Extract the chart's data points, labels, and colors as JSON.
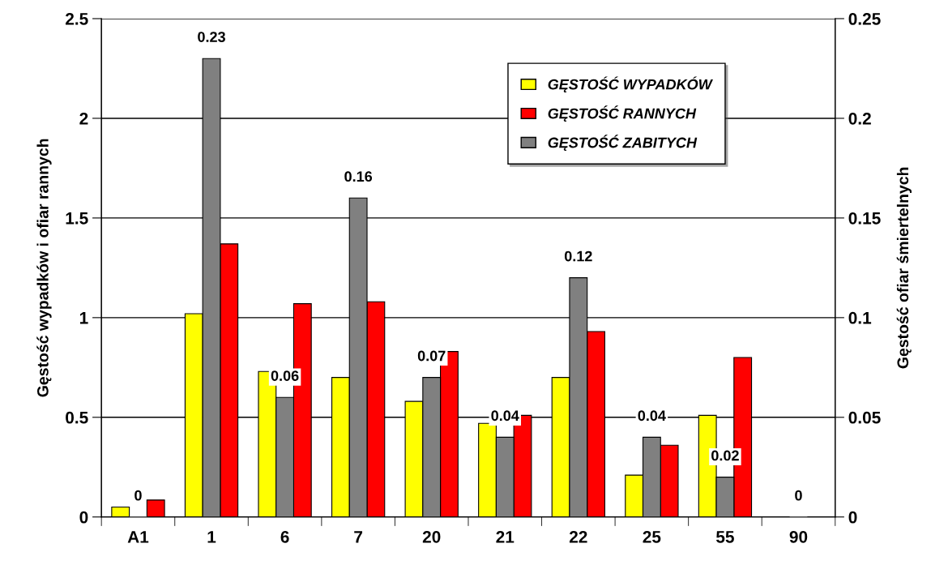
{
  "chart_data": {
    "type": "bar",
    "categories": [
      "A1",
      "1",
      "6",
      "7",
      "20",
      "21",
      "22",
      "25",
      "55",
      "90"
    ],
    "series": [
      {
        "name": "GĘSTOŚĆ WYPADKÓW",
        "color": "#ffff00",
        "values": [
          0.05,
          1.02,
          0.73,
          0.7,
          0.58,
          0.47,
          0.7,
          0.21,
          0.51,
          null
        ]
      },
      {
        "name": "GĘSTOŚĆ RANNYCH",
        "color": "#ff0000",
        "values": [
          0.085,
          1.37,
          1.07,
          1.08,
          0.83,
          0.51,
          0.93,
          0.36,
          0.8,
          null
        ]
      },
      {
        "name": "GĘSTOŚĆ ZABITYCH",
        "color": "#808080",
        "axis": "y2",
        "values": [
          0,
          0.23,
          0.06,
          0.16,
          0.07,
          0.04,
          0.12,
          0.04,
          0.02,
          0
        ],
        "value_labels": [
          "0",
          "0.23",
          "0.06",
          "0.16",
          "0.07",
          "0.04",
          "0.12",
          "0.04",
          "0.02",
          "0"
        ]
      }
    ],
    "ylabel": "Gęstość wypadków i ofiar rannych",
    "y2label": "Gęstość ofiar śmiertelnych",
    "ylim": [
      0,
      2.5
    ],
    "yticks": [
      0,
      0.5,
      1,
      1.5,
      2,
      2.5
    ],
    "y2lim": [
      0,
      0.25
    ],
    "y2ticks": [
      0,
      0.05,
      0.1,
      0.15,
      0.2,
      0.25
    ],
    "grid": "y",
    "legend": "top right"
  }
}
